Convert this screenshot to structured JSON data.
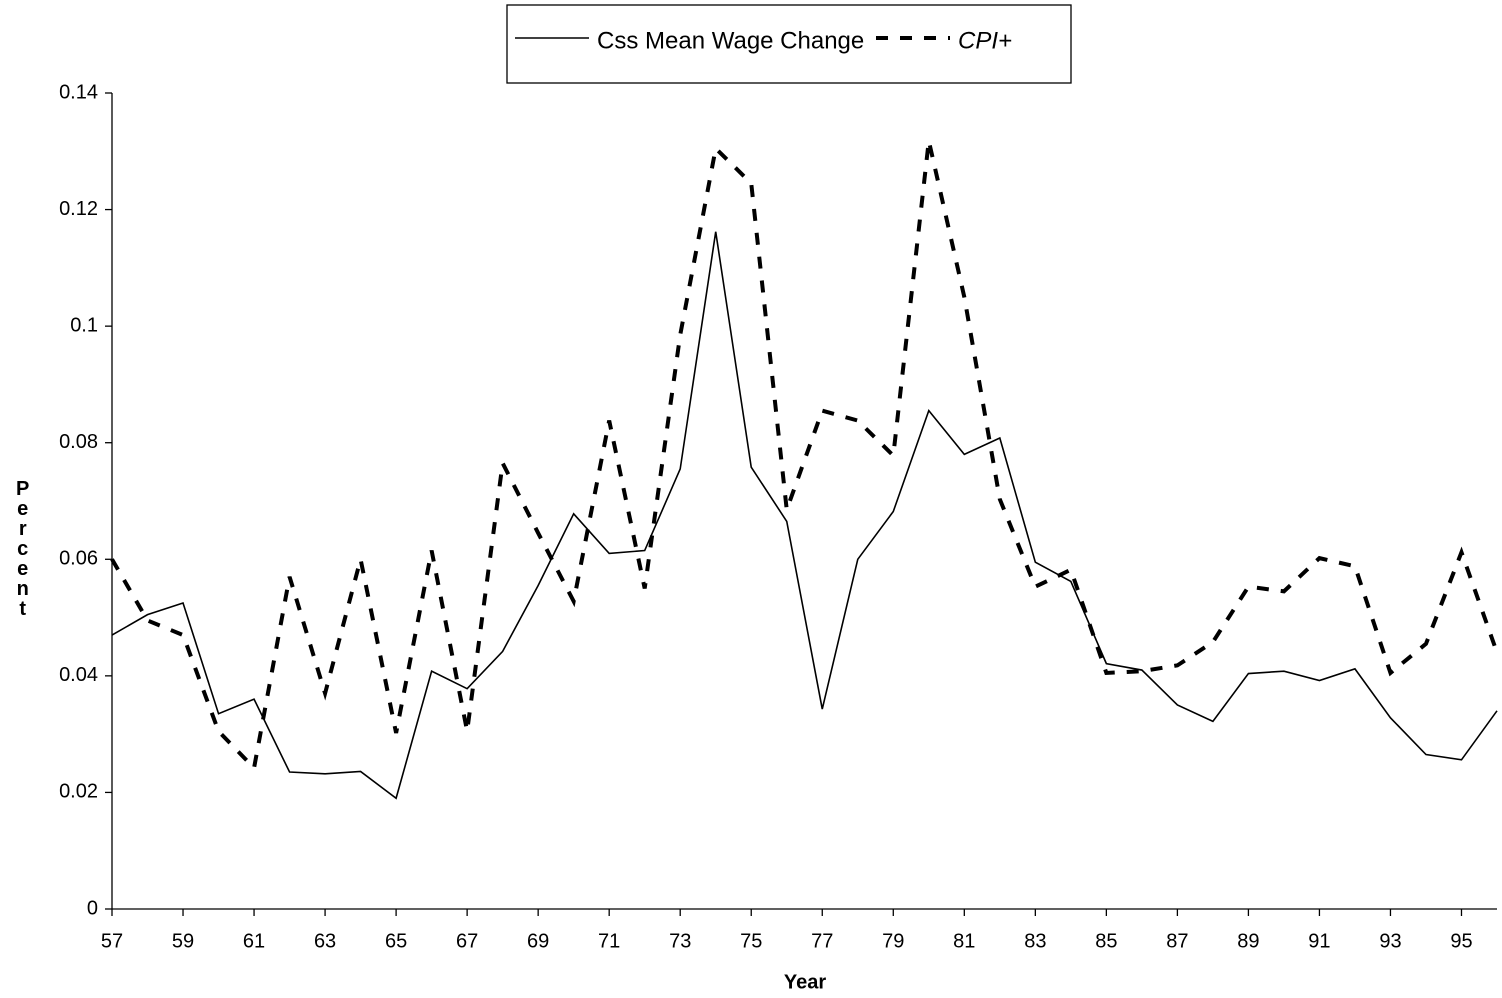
{
  "chart_data": {
    "type": "line",
    "x_label": "Year",
    "y_label": "Percent",
    "x": [
      57,
      58,
      59,
      60,
      61,
      62,
      63,
      64,
      65,
      66,
      67,
      68,
      69,
      70,
      71,
      72,
      73,
      74,
      75,
      76,
      77,
      78,
      79,
      80,
      81,
      82,
      83,
      84,
      85,
      86,
      87,
      88,
      89,
      90,
      91,
      92,
      93,
      94,
      95,
      96
    ],
    "xlim": [
      57,
      96
    ],
    "xticks": [
      57,
      59,
      61,
      63,
      65,
      67,
      69,
      71,
      73,
      75,
      77,
      79,
      81,
      83,
      85,
      87,
      89,
      91,
      93,
      95
    ],
    "ylim": [
      0,
      0.14
    ],
    "yticks": [
      0,
      0.02,
      0.04,
      0.06,
      0.08,
      0.1,
      0.12,
      0.14
    ],
    "legend": "top",
    "series": [
      {
        "name": "Css Mean Wage Change",
        "color": "#000000",
        "dash": "solid",
        "values": [
          0.047,
          0.0505,
          0.0525,
          0.0335,
          0.036,
          0.0235,
          0.0232,
          0.0236,
          0.019,
          0.0408,
          0.0378,
          0.0442,
          0.0555,
          0.0678,
          0.061,
          0.0615,
          0.0755,
          0.1162,
          0.0758,
          0.0665,
          0.0343,
          0.06,
          0.0682,
          0.0855,
          0.078,
          0.0808,
          0.0595,
          0.0562,
          0.0421,
          0.041,
          0.035,
          0.0322,
          0.0404,
          0.0408,
          0.0392,
          0.0412,
          0.0328,
          0.0265,
          0.0256,
          0.034
        ]
      },
      {
        "name": "CPI+",
        "color": "#000000",
        "dash": "dashed",
        "values": [
          0.06,
          0.0495,
          0.047,
          0.0305,
          0.0242,
          0.057,
          0.037,
          0.06,
          0.0302,
          0.0615,
          0.0305,
          0.0765,
          0.0645,
          0.0528,
          0.0838,
          0.055,
          0.0985,
          0.1305,
          0.1245,
          0.0685,
          0.0855,
          0.0838,
          0.0778,
          0.1318,
          0.105,
          0.0703,
          0.0553,
          0.0582,
          0.0405,
          0.0408,
          0.0418,
          0.0458,
          0.0553,
          0.0545,
          0.0602,
          0.0588,
          0.0405,
          0.0455,
          0.0612,
          0.044
        ]
      }
    ]
  }
}
